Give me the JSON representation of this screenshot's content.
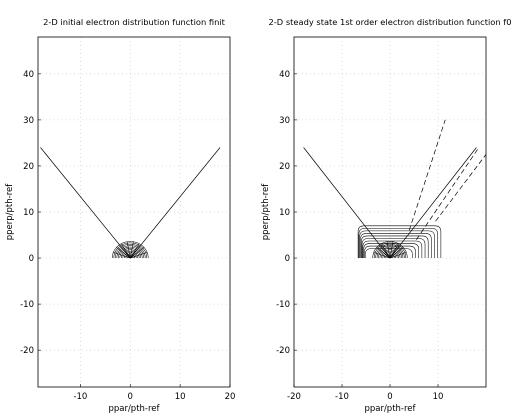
{
  "chart_data": [
    {
      "type": "contour",
      "title": "2-D initial electron distribution function finit",
      "xlabel": "ppar/pth-ref",
      "ylabel": "pperp/pth-ref",
      "xlim": [
        -18.5,
        20
      ],
      "ylim": [
        -28,
        48
      ],
      "xticks": [
        -10,
        0,
        10,
        20
      ],
      "yticks": [
        -20,
        -10,
        0,
        10,
        20,
        30,
        40
      ],
      "grid": true,
      "boundary_lines": [
        {
          "style": "solid",
          "points": [
            [
              0,
              0
            ],
            [
              -18,
              24
            ]
          ]
        },
        {
          "style": "solid",
          "points": [
            [
              0,
              0
            ],
            [
              18,
              24
            ]
          ]
        }
      ],
      "contours": {
        "center": [
          0,
          0
        ],
        "radii": [
          0.3,
          0.6,
          0.9,
          1.2,
          1.5,
          1.8,
          2.1,
          2.4,
          2.7,
          3.0,
          3.3,
          3.6
        ],
        "half_plane": "upper"
      }
    },
    {
      "type": "contour",
      "title": "2-D steady state 1st order electron distribution function f0",
      "xlabel": "ppar/pth-ref",
      "ylabel": "pperp/pth-ref",
      "xlim": [
        -20,
        20
      ],
      "ylim": [
        -28,
        48
      ],
      "xticks": [
        -20,
        -10,
        0,
        10
      ],
      "yticks": [
        -20,
        -10,
        0,
        10,
        20,
        30,
        40
      ],
      "grid": true,
      "boundary_lines": [
        {
          "style": "solid",
          "points": [
            [
              0,
              0
            ],
            [
              -18,
              24
            ]
          ]
        },
        {
          "style": "solid",
          "points": [
            [
              0,
              0
            ],
            [
              18,
              24
            ]
          ]
        },
        {
          "style": "dashed",
          "points": [
            [
              4,
              6
            ],
            [
              11.5,
              30
            ]
          ]
        },
        {
          "style": "dashed",
          "points": [
            [
              5.5,
              4
            ],
            [
              18.5,
              24
            ]
          ]
        },
        {
          "style": "dashed",
          "points": [
            [
              9.5,
              8
            ],
            [
              20,
              22.5
            ]
          ]
        }
      ],
      "contours": {
        "center": [
          0,
          0
        ],
        "radii": [
          0.3,
          0.6,
          0.9,
          1.2,
          1.5,
          1.8,
          2.1,
          2.4,
          2.7,
          3.0,
          3.3,
          3.6
        ],
        "half_plane": "upper",
        "extended_lobes": {
          "x_range": [
            -8,
            16
          ],
          "y_range": [
            0,
            7
          ],
          "levels": 10
        }
      }
    }
  ]
}
